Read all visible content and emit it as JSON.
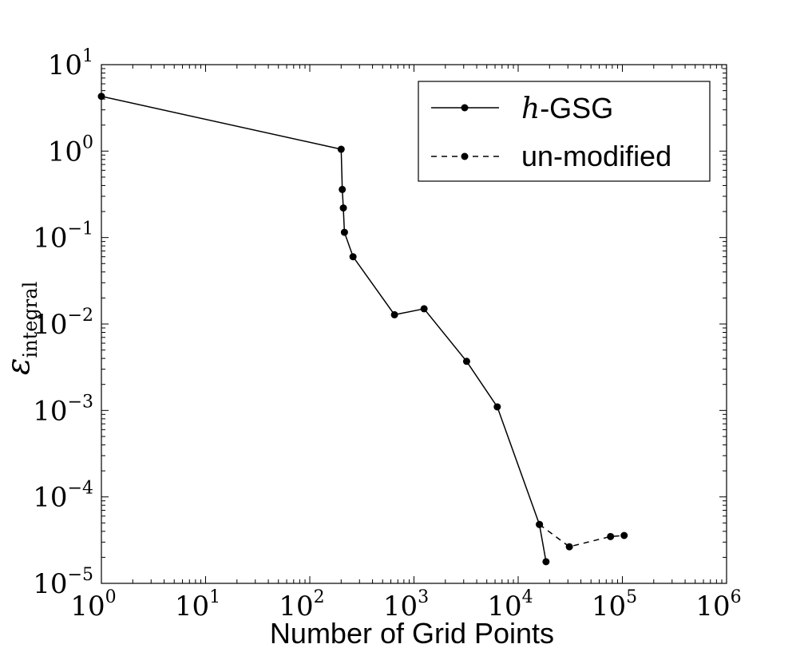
{
  "chart_data": {
    "type": "line",
    "title": "",
    "xlabel": "Number of Grid Points",
    "ylabel": {
      "main": "ε",
      "subscript": "integral"
    },
    "xscale": "log",
    "yscale": "log",
    "xlim": [
      1,
      1000000
    ],
    "ylim": [
      1e-05,
      10
    ],
    "x_ticks": [
      {
        "base": "10",
        "exp": "0",
        "value": 1
      },
      {
        "base": "10",
        "exp": "1",
        "value": 10
      },
      {
        "base": "10",
        "exp": "2",
        "value": 100
      },
      {
        "base": "10",
        "exp": "3",
        "value": 1000
      },
      {
        "base": "10",
        "exp": "4",
        "value": 10000
      },
      {
        "base": "10",
        "exp": "5",
        "value": 100000
      },
      {
        "base": "10",
        "exp": "6",
        "value": 1000000
      }
    ],
    "y_ticks": [
      {
        "base": "10",
        "exp": "1",
        "value": 10
      },
      {
        "base": "10",
        "exp": "0",
        "value": 1
      },
      {
        "base": "10",
        "exp": "−1",
        "value": 0.1
      },
      {
        "base": "10",
        "exp": "−2",
        "value": 0.01
      },
      {
        "base": "10",
        "exp": "−3",
        "value": 0.001
      },
      {
        "base": "10",
        "exp": "−4",
        "value": 0.0001
      },
      {
        "base": "10",
        "exp": "−5",
        "value": 1e-05
      }
    ],
    "grid": false,
    "legend_position": "top-right",
    "legend": [
      {
        "prefix": "h",
        "suffix": "-GSG",
        "style": "solid"
      },
      {
        "prefix": "",
        "suffix": "un-modified",
        "style": "dashed"
      }
    ],
    "series": [
      {
        "name": "h-GSG",
        "style": "solid",
        "color": "#000000",
        "x": [
          1,
          200,
          205,
          210,
          215,
          260,
          650,
          1250,
          3200,
          6300,
          16000,
          18500
        ],
        "y": [
          4.3,
          1.05,
          0.36,
          0.22,
          0.115,
          0.06,
          0.0128,
          0.015,
          0.0037,
          0.0011,
          4.8e-05,
          1.78e-05
        ]
      },
      {
        "name": "un-modified",
        "style": "dashed",
        "color": "#000000",
        "x": [
          16000,
          31000,
          77000,
          104000
        ],
        "y": [
          4.8e-05,
          2.65e-05,
          3.48e-05,
          3.58e-05
        ]
      }
    ]
  }
}
